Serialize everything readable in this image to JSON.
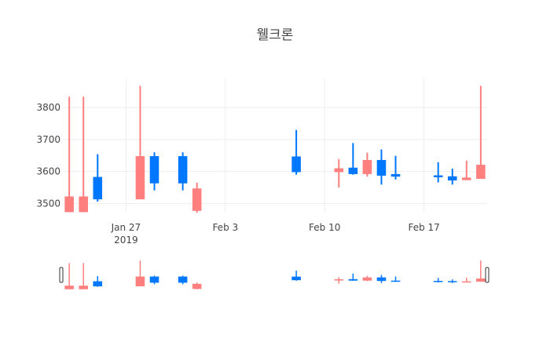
{
  "chart_data": {
    "type": "candlestick",
    "title": "웰크론",
    "xlabel": "",
    "ylabel": "",
    "ylim": [
      3474,
      3891
    ],
    "xlim": [
      "2019-01-22.55",
      "2019-02-21.45"
    ],
    "grid": true,
    "increasing_color": "#0077ff",
    "decreasing_color": "#ff7f7f",
    "y_ticks": [
      3500,
      3600,
      3700,
      3800
    ],
    "x_ticks": [
      {
        "day": 27,
        "label": "Jan 27",
        "sublabel": "2019"
      },
      {
        "day": 34,
        "label": "Feb 3"
      },
      {
        "day": 41,
        "label": "Feb 10"
      },
      {
        "day": 48,
        "label": "Feb 17"
      }
    ],
    "candles": [
      {
        "date": "2019-01-23",
        "day": 23,
        "open": 3522,
        "high": 3834,
        "low": 3473,
        "close": 3473
      },
      {
        "date": "2019-01-24",
        "day": 24,
        "open": 3522,
        "high": 3834,
        "low": 3473,
        "close": 3473
      },
      {
        "date": "2019-01-25",
        "day": 25,
        "open": 3513,
        "high": 3654,
        "low": 3506,
        "close": 3583
      },
      {
        "date": "2019-01-28",
        "day": 28,
        "open": 3648,
        "high": 3868,
        "low": 3513,
        "close": 3513
      },
      {
        "date": "2019-01-29",
        "day": 29,
        "open": 3563,
        "high": 3660,
        "low": 3541,
        "close": 3648
      },
      {
        "date": "2019-01-31",
        "day": 31,
        "open": 3563,
        "high": 3660,
        "low": 3541,
        "close": 3648
      },
      {
        "date": "2019-02-01",
        "day": 32,
        "open": 3547,
        "high": 3565,
        "low": 3471,
        "close": 3477
      },
      {
        "date": "2019-02-08",
        "day": 39,
        "open": 3598,
        "high": 3730,
        "low": 3590,
        "close": 3647
      },
      {
        "date": "2019-02-11",
        "day": 42,
        "open": 3610,
        "high": 3639,
        "low": 3550,
        "close": 3598
      },
      {
        "date": "2019-02-12",
        "day": 43,
        "open": 3592,
        "high": 3689,
        "low": 3590,
        "close": 3612
      },
      {
        "date": "2019-02-13",
        "day": 44,
        "open": 3636,
        "high": 3659,
        "low": 3584,
        "close": 3592
      },
      {
        "date": "2019-02-14",
        "day": 45,
        "open": 3587,
        "high": 3669,
        "low": 3559,
        "close": 3636
      },
      {
        "date": "2019-02-15",
        "day": 46,
        "open": 3584,
        "high": 3649,
        "low": 3575,
        "close": 3592
      },
      {
        "date": "2019-02-18",
        "day": 49,
        "open": 3582,
        "high": 3629,
        "low": 3566,
        "close": 3588
      },
      {
        "date": "2019-02-19",
        "day": 50,
        "open": 3572,
        "high": 3609,
        "low": 3559,
        "close": 3585
      },
      {
        "date": "2019-02-20",
        "day": 51,
        "open": 3581,
        "high": 3634,
        "low": 3573,
        "close": 3573
      },
      {
        "date": "2019-02-21",
        "day": 52,
        "open": 3621,
        "high": 3868,
        "low": 3577,
        "close": 3577
      }
    ],
    "rangeslider": true
  }
}
